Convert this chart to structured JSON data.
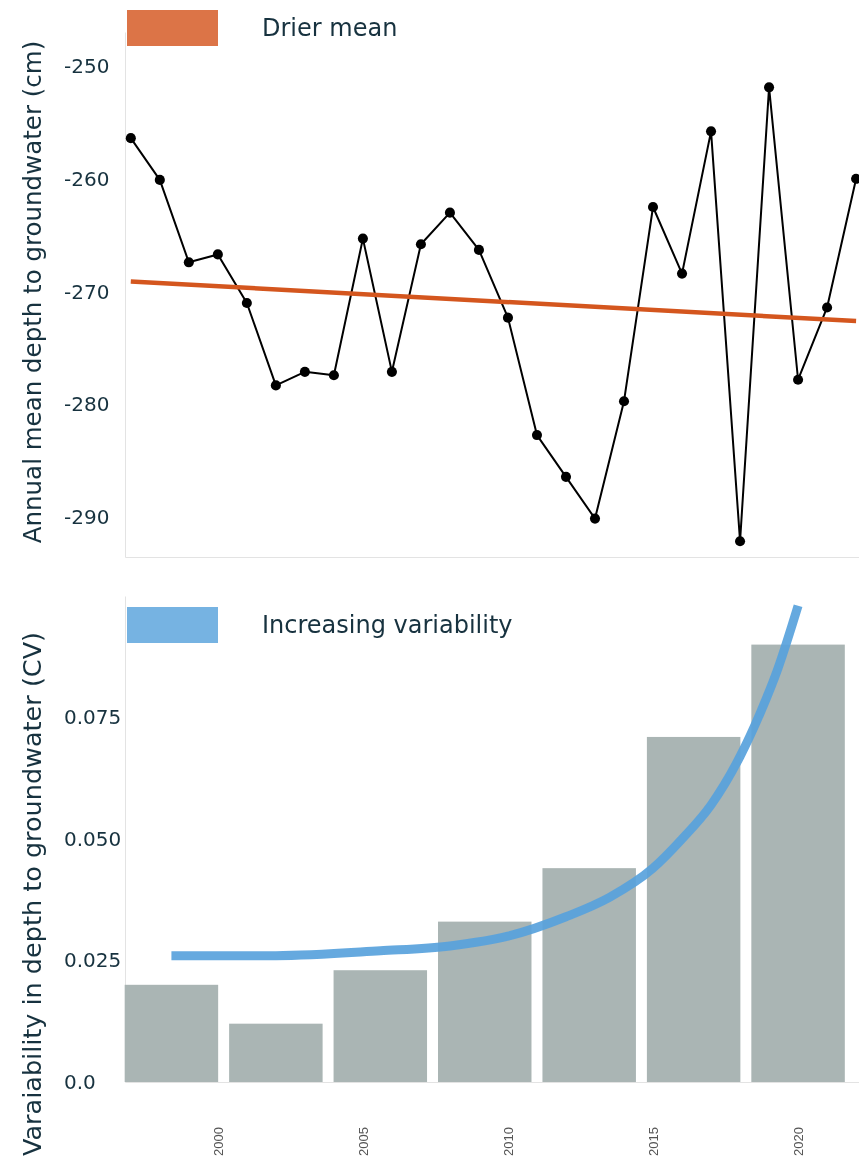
{
  "chart_data": [
    {
      "type": "line",
      "ylabel": "Annual mean depth to groundwater (cm)",
      "x": [
        1997,
        1998,
        1999,
        2000,
        2001,
        2002,
        2003,
        2004,
        2005,
        2006,
        2007,
        2008,
        2009,
        2010,
        2011,
        2012,
        2013,
        2014,
        2015,
        2016,
        2017,
        2018,
        2019,
        2020,
        2021,
        2022
      ],
      "series": [
        {
          "color": "#000000",
          "marker": "circle",
          "values": [
            -256.4,
            -260.1,
            -267.4,
            -266.7,
            -271.0,
            -278.3,
            -277.1,
            -277.4,
            -265.3,
            -277.1,
            -265.8,
            -263.0,
            -266.3,
            -272.3,
            -282.7,
            -286.4,
            -290.1,
            -279.7,
            -262.5,
            -268.4,
            -255.8,
            -292.1,
            -251.9,
            -277.8,
            -271.4,
            -260.0
          ]
        },
        {
          "name": "Drier mean",
          "type": "line",
          "color": "#d4561e",
          "x": [
            1997,
            2022
          ],
          "values": [
            -269.1,
            -272.6
          ]
        }
      ],
      "xlim": [
        1996.8,
        2022.1
      ],
      "ylim": [
        -293.5,
        -247
      ],
      "yticks": [
        -290,
        -280,
        -270,
        -260,
        -250
      ],
      "tick_labels": "y",
      "legend": "top left"
    },
    {
      "type": "bar",
      "ylabel": "Varaiability in depth to groundwater (CV)",
      "x": [
        1998.4,
        2002,
        2005.6,
        2009.2,
        2012.8,
        2016.4,
        2020
      ],
      "series": [
        {
          "color": "#aab5b4",
          "values": [
            0.02,
            0.012,
            0.023,
            0.033,
            0.044,
            0.071,
            0.09
          ]
        },
        {
          "name": "Increasing variability",
          "type": "line",
          "color": "#58a2dc",
          "x": [
            1998.4,
            2002,
            2005.6,
            2008,
            2010,
            2012,
            2013.5,
            2015,
            2016,
            2017,
            2018,
            2018.7,
            2019.3,
            2020
          ],
          "values": [
            0.026,
            0.026,
            0.027,
            0.028,
            0.03,
            0.034,
            0.038,
            0.044,
            0.05,
            0.057,
            0.067,
            0.076,
            0.085,
            0.098
          ]
        }
      ],
      "xlim": [
        1996.8,
        2022.1
      ],
      "xticks": [
        2000,
        2005,
        2010,
        2015,
        2020
      ],
      "ylim": [
        0,
        0.1
      ],
      "yticks": [
        {
          "value": 0,
          "label": "0.0"
        },
        0.025,
        {
          "value": 0.05,
          "label": "0.050"
        },
        0.075
      ],
      "legend": "top left"
    }
  ]
}
